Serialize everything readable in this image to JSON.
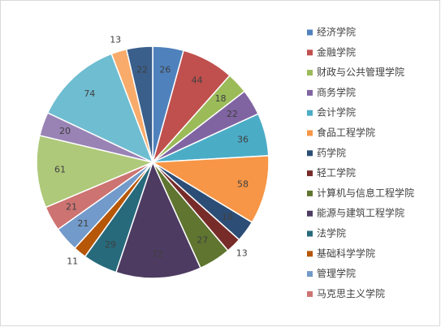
{
  "chart_data": {
    "type": "pie",
    "categories": [
      "经济学院",
      "金融学院",
      "财政与公共管理学院",
      "商务学院",
      "会计学院",
      "食品工程学院",
      "药学院",
      "轻工学院",
      "计算机与信息工程学院",
      "能源与建筑工程学院",
      "法学院",
      "基础科学学院",
      "管理学院",
      "马克思主义学院",
      null,
      null,
      null,
      null,
      null
    ],
    "values": [
      26,
      44,
      18,
      22,
      36,
      58,
      18,
      13,
      27,
      72,
      29,
      11,
      21,
      21,
      61,
      20,
      74,
      13,
      22
    ],
    "colors": [
      "#4F81BD",
      "#C0504D",
      "#9BBB59",
      "#8064A2",
      "#4BACC6",
      "#F79646",
      "#2C4D75",
      "#772C2A",
      "#5F7530",
      "#4D3B62",
      "#276A7C",
      "#B65708",
      "#729ACA",
      "#CD7371",
      "#AFC97A",
      "#9983B5",
      "#6FBDD1",
      "#F9AB6B",
      "#3A5F8B"
    ],
    "legend": "right"
  }
}
